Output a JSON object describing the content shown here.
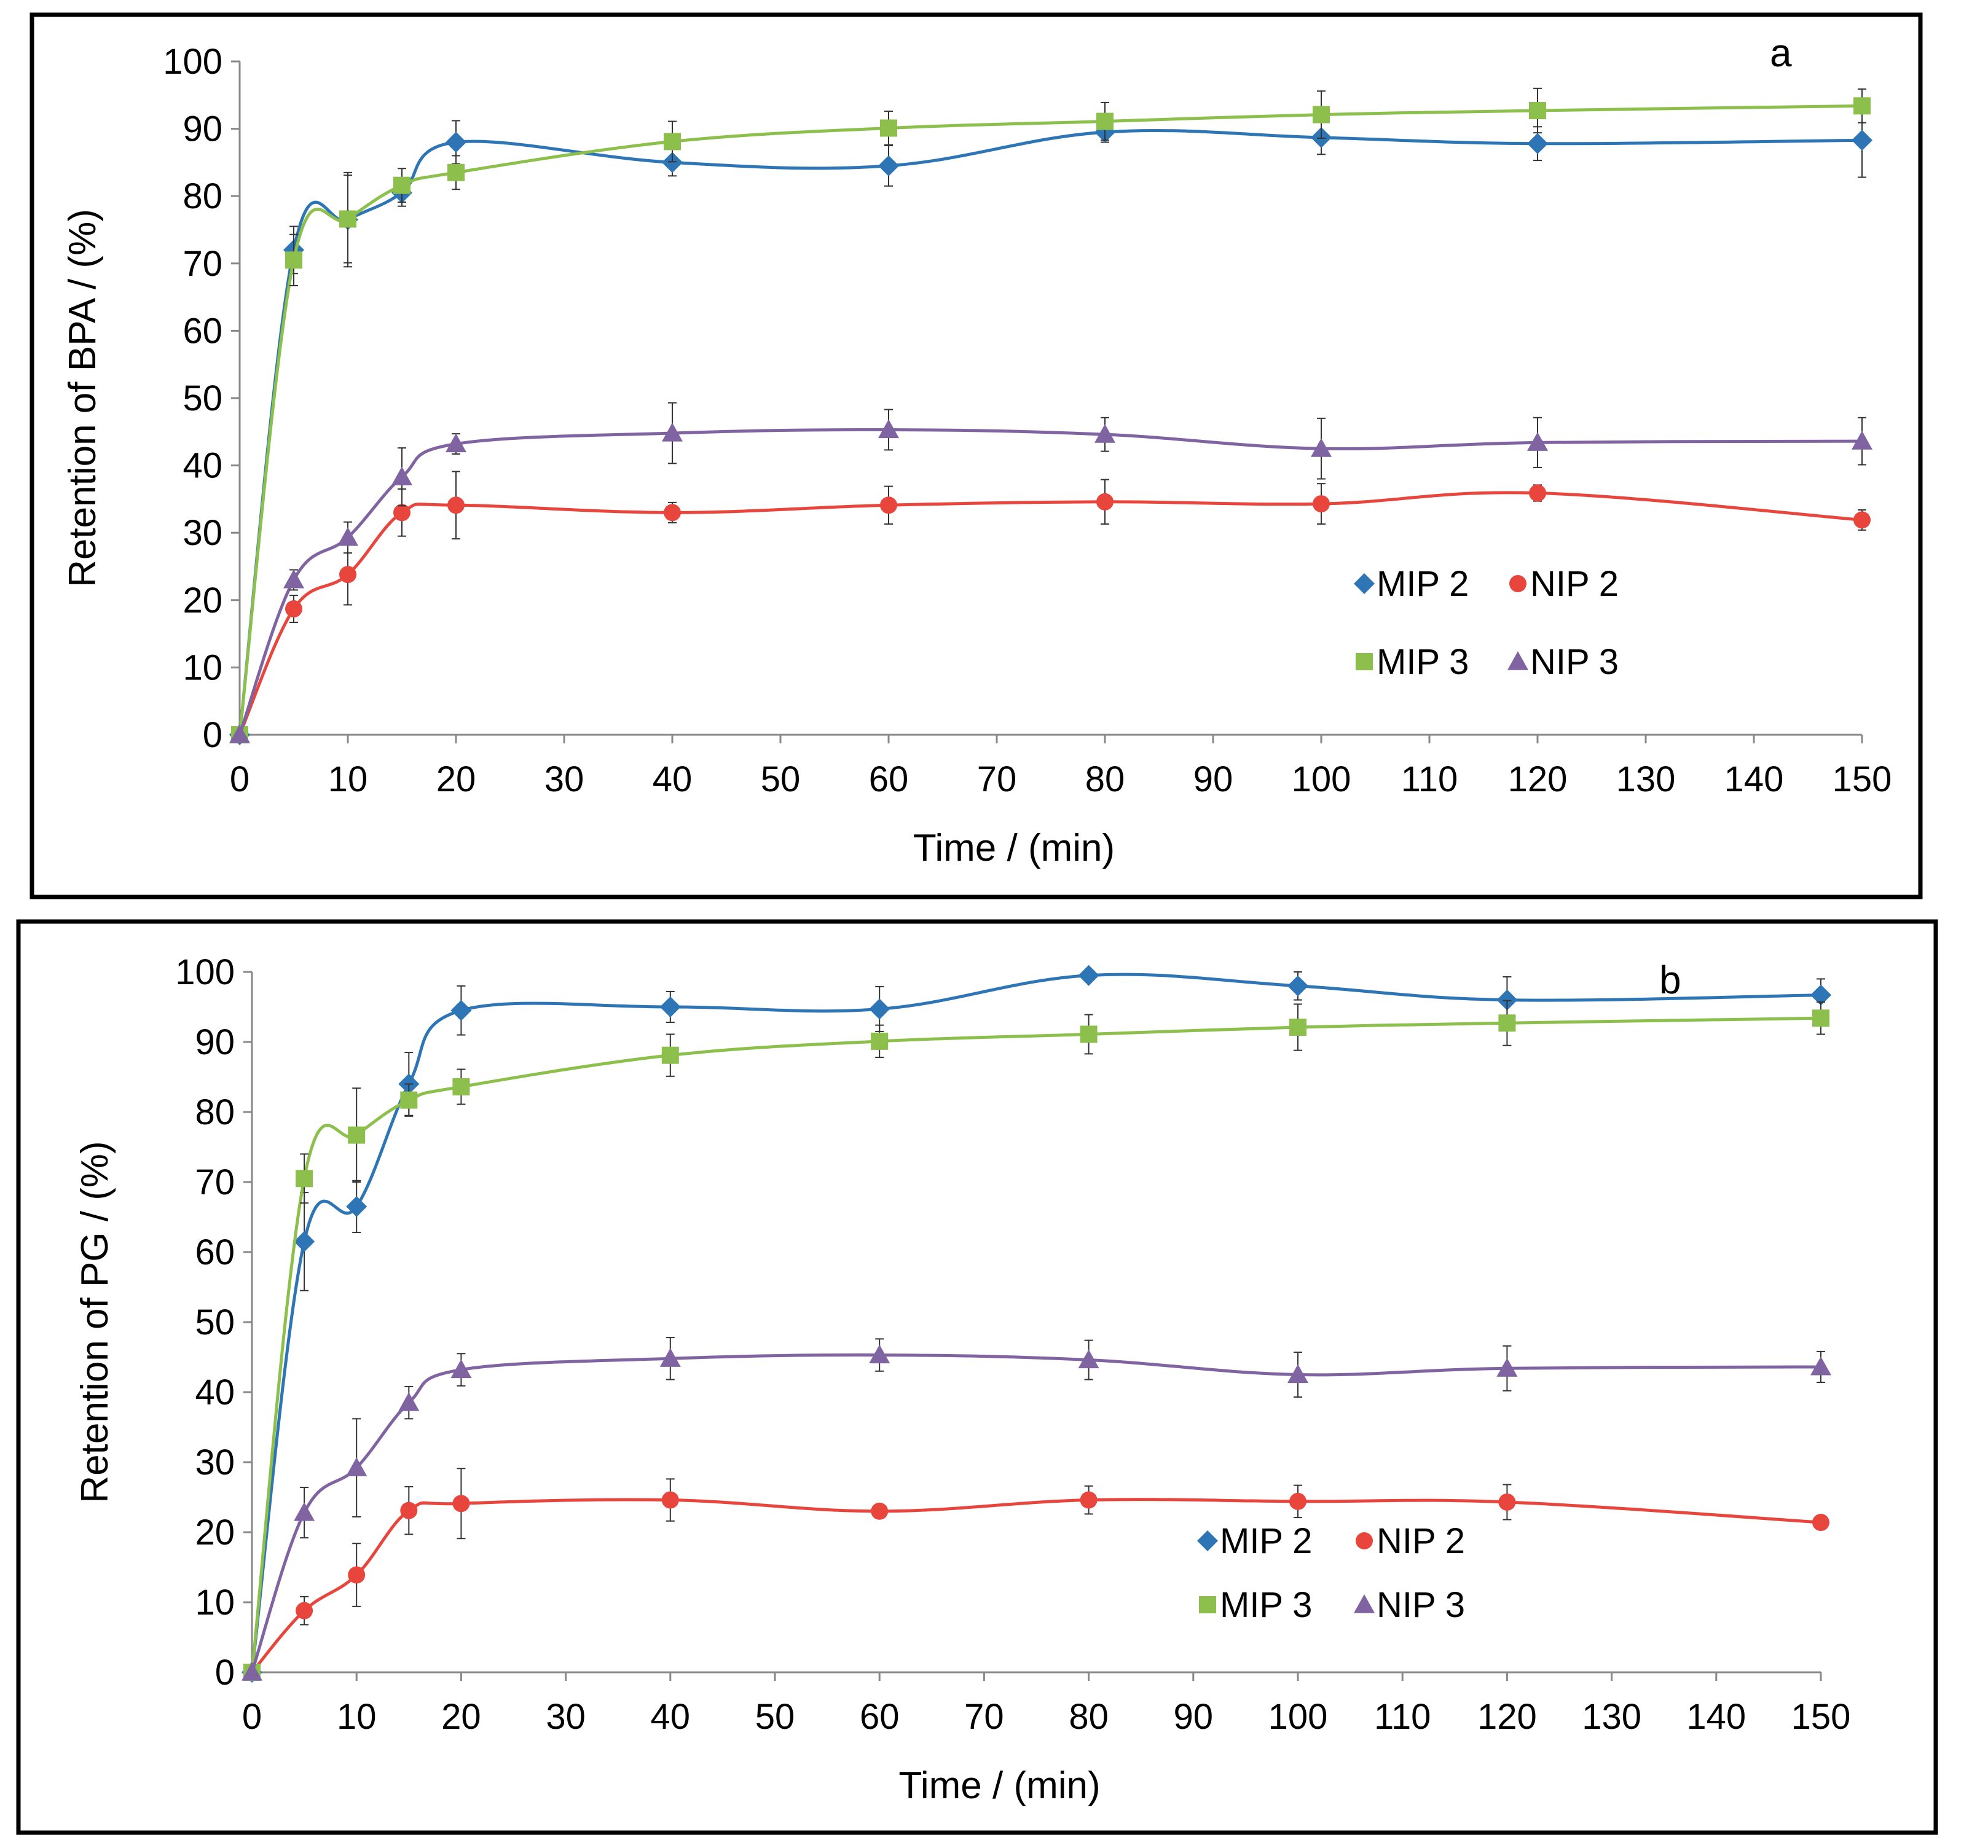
{
  "chart_data": [
    {
      "type": "line",
      "panel_label": "a",
      "title": "",
      "xlabel": "Time / (min)",
      "ylabel": "Retention of BPA / (%)",
      "x_ticks": [
        "0",
        "10",
        "20",
        "30",
        "40",
        "50",
        "60",
        "70",
        "80",
        "90",
        "100",
        "110",
        "120",
        "130",
        "140",
        "150"
      ],
      "y_ticks": [
        "0",
        "10",
        "20",
        "30",
        "40",
        "50",
        "60",
        "70",
        "80",
        "90",
        "100"
      ],
      "ylim": [
        0,
        100
      ],
      "x": [
        0,
        5,
        10,
        15,
        20,
        40,
        60,
        80,
        100,
        120,
        150
      ],
      "legend_position": "lower-right",
      "series": [
        {
          "name": "MIP 2",
          "color": "#2e75b6",
          "marker": "diamond",
          "values": [
            0,
            72,
            76.5,
            80.5,
            88,
            85,
            84.5,
            89.5,
            88.7,
            87.8,
            88.3
          ],
          "errors": [
            0,
            3.5,
            7,
            2,
            3.2,
            2,
            3,
            1.5,
            2.5,
            2.5,
            5.5
          ]
        },
        {
          "name": "NIP 2",
          "color": "#e8453c",
          "marker": "circle",
          "values": [
            0,
            18.7,
            23.8,
            33,
            34.1,
            33,
            34.1,
            34.6,
            34.3,
            35.9,
            31.9
          ],
          "errors": [
            0,
            2,
            4.5,
            3.5,
            5,
            1.5,
            2.8,
            3.3,
            3,
            1.2,
            1.5
          ]
        },
        {
          "name": "MIP 3",
          "color": "#8cbf4c",
          "marker": "square",
          "values": [
            0,
            70.5,
            76.6,
            81.6,
            83.5,
            88.1,
            90.1,
            91.1,
            92.1,
            92.7,
            93.4
          ],
          "errors": [
            0,
            3.8,
            6.5,
            2.5,
            2.5,
            3,
            2.5,
            2.8,
            3.5,
            3.3,
            2.5
          ]
        },
        {
          "name": "NIP 3",
          "color": "#8064a2",
          "marker": "triangle",
          "values": [
            0,
            23,
            29.3,
            38.3,
            43.2,
            44.8,
            45.3,
            44.6,
            42.5,
            43.4,
            43.6
          ],
          "errors": [
            0,
            1.5,
            2.3,
            4.3,
            1.5,
            4.5,
            3,
            2.5,
            4.5,
            3.7,
            3.5
          ]
        }
      ]
    },
    {
      "type": "line",
      "panel_label": "b",
      "title": "",
      "xlabel": "Time / (min)",
      "ylabel": "Retention of PG / (%)",
      "x_ticks": [
        "0",
        "10",
        "20",
        "30",
        "40",
        "50",
        "60",
        "70",
        "80",
        "90",
        "100",
        "110",
        "120",
        "130",
        "140",
        "150"
      ],
      "y_ticks": [
        "0",
        "10",
        "20",
        "30",
        "40",
        "50",
        "60",
        "70",
        "80",
        "90",
        "100"
      ],
      "ylim": [
        0,
        100
      ],
      "x": [
        0,
        5,
        10,
        15,
        20,
        40,
        60,
        80,
        100,
        120,
        150
      ],
      "legend_position": "lower-center",
      "series": [
        {
          "name": "MIP 2",
          "color": "#2e75b6",
          "marker": "diamond",
          "values": [
            0,
            61.5,
            66.5,
            84,
            94.5,
            95,
            94.7,
            99.5,
            98,
            96,
            96.7
          ],
          "errors": [
            0,
            7,
            3.7,
            4.5,
            3.5,
            2.2,
            3.2,
            0.5,
            2,
            3.3,
            2.3
          ]
        },
        {
          "name": "NIP 2",
          "color": "#e8453c",
          "marker": "circle",
          "values": [
            0,
            8.8,
            13.9,
            23.1,
            24.1,
            24.6,
            23,
            24.6,
            24.4,
            24.3,
            21.4
          ],
          "errors": [
            0,
            2,
            4.5,
            3.4,
            5,
            3,
            0.8,
            2,
            2.3,
            2.5,
            0.8
          ]
        },
        {
          "name": "MIP 3",
          "color": "#8cbf4c",
          "marker": "square",
          "values": [
            0,
            70.5,
            76.7,
            81.7,
            83.6,
            88.1,
            90.1,
            91.1,
            92.1,
            92.7,
            93.4
          ],
          "errors": [
            0,
            3.5,
            6.7,
            2.3,
            2.5,
            3,
            2.3,
            2.8,
            3.3,
            3.2,
            2.3
          ]
        },
        {
          "name": "NIP 3",
          "color": "#8064a2",
          "marker": "triangle",
          "values": [
            0,
            22.8,
            29.2,
            38.5,
            43.2,
            44.8,
            45.3,
            44.6,
            42.5,
            43.4,
            43.6
          ],
          "errors": [
            0,
            3.6,
            7,
            2.3,
            2.3,
            3,
            2.3,
            2.8,
            3.2,
            3.2,
            2.2
          ]
        }
      ]
    }
  ]
}
